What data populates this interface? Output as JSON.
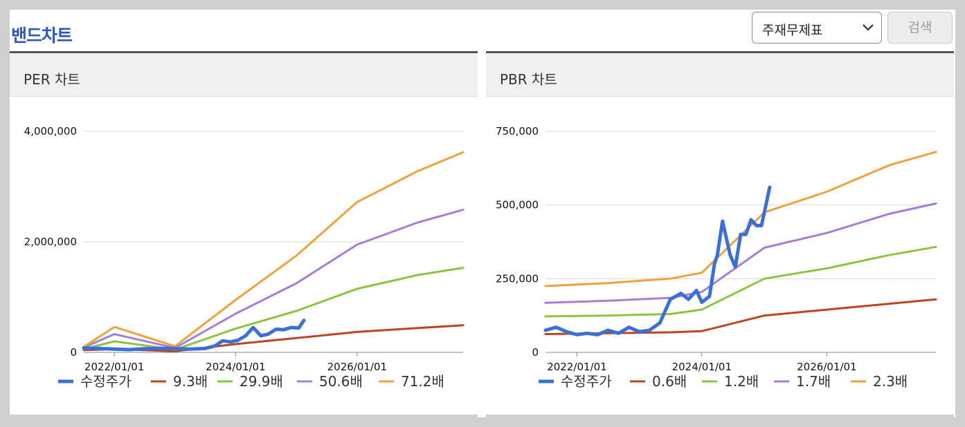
{
  "header": {
    "title": "밴드차트",
    "select_value": "주재무제표",
    "search_label": "검색"
  },
  "chart_data": [
    {
      "type": "line",
      "title": "PER 차트",
      "ylim": [
        0,
        4000000
      ],
      "yticks": [
        0,
        2000000,
        4000000
      ],
      "ytick_labels": [
        "0",
        "2,000,000",
        "4,000,000"
      ],
      "xticks": [
        "2022-01-01",
        "2024-01-01",
        "2026-01-01"
      ],
      "xtick_labels": [
        "2022/01/01",
        "2024/01/01",
        "2026/01/01"
      ],
      "xlim": [
        "2021-07-01",
        "2027-10-01"
      ],
      "grid": true,
      "legend_position": "bottom",
      "series": [
        {
          "name": "수정주가",
          "color": "#3a6fd8",
          "thick": true,
          "x": [
            "2021-07-01",
            "2021-10-01",
            "2022-01-01",
            "2022-04-01",
            "2022-07-01",
            "2022-10-01",
            "2023-01-01",
            "2023-04-01",
            "2023-07-01",
            "2023-09-01",
            "2023-10-15",
            "2023-12-01",
            "2024-01-15",
            "2024-03-01",
            "2024-04-15",
            "2024-06-01",
            "2024-07-15",
            "2024-09-01",
            "2024-10-15",
            "2024-12-01",
            "2025-01-15",
            "2025-02-15"
          ],
          "values": [
            80000,
            70000,
            60000,
            50000,
            65000,
            70000,
            70000,
            60000,
            70000,
            120000,
            210000,
            190000,
            220000,
            300000,
            450000,
            300000,
            330000,
            420000,
            410000,
            450000,
            440000,
            580000
          ]
        },
        {
          "name": "9.3배",
          "color": "#c0431f",
          "x": [
            "2021-07-01",
            "2022-01-01",
            "2023-01-01",
            "2024-01-01",
            "2025-01-01",
            "2026-01-01",
            "2027-01-01",
            "2027-10-01"
          ],
          "values": [
            40000,
            60000,
            20000,
            150000,
            260000,
            370000,
            440000,
            490000
          ]
        },
        {
          "name": "29.9배",
          "color": "#8bc43f",
          "x": [
            "2021-07-01",
            "2022-01-01",
            "2023-01-01",
            "2024-01-01",
            "2025-01-01",
            "2026-01-01",
            "2027-01-01",
            "2027-10-01"
          ],
          "values": [
            60000,
            200000,
            50000,
            430000,
            750000,
            1150000,
            1400000,
            1530000
          ]
        },
        {
          "name": "50.6배",
          "color": "#a47ed6",
          "x": [
            "2021-07-01",
            "2022-01-01",
            "2023-01-01",
            "2024-01-01",
            "2025-01-01",
            "2026-01-01",
            "2027-01-01",
            "2027-10-01"
          ],
          "values": [
            90000,
            330000,
            80000,
            700000,
            1250000,
            1950000,
            2350000,
            2580000
          ]
        },
        {
          "name": "71.2배",
          "color": "#f0a23a",
          "x": [
            "2021-07-01",
            "2022-01-01",
            "2023-01-01",
            "2024-01-01",
            "2025-01-01",
            "2026-01-01",
            "2027-01-01",
            "2027-10-01"
          ],
          "values": [
            100000,
            460000,
            110000,
            950000,
            1750000,
            2720000,
            3280000,
            3620000
          ]
        }
      ]
    },
    {
      "type": "line",
      "title": "PBR 차트",
      "ylim": [
        0,
        750000
      ],
      "yticks": [
        0,
        250000,
        500000,
        750000
      ],
      "ytick_labels": [
        "0",
        "250,000",
        "500,000",
        "750,000"
      ],
      "xticks": [
        "2022-01-01",
        "2024-01-01",
        "2026-01-01"
      ],
      "xtick_labels": [
        "2022/01/01",
        "2024/01/01",
        "2026/01/01"
      ],
      "xlim": [
        "2021-07-01",
        "2027-10-01"
      ],
      "grid": true,
      "legend_position": "bottom",
      "series": [
        {
          "name": "수정주가",
          "color": "#3a6fd8",
          "thick": true,
          "x": [
            "2021-07-01",
            "2021-09-01",
            "2021-11-01",
            "2022-01-01",
            "2022-03-01",
            "2022-05-01",
            "2022-07-01",
            "2022-09-01",
            "2022-11-01",
            "2023-01-01",
            "2023-03-01",
            "2023-05-01",
            "2023-07-01",
            "2023-09-01",
            "2023-10-15",
            "2023-12-01",
            "2024-01-01",
            "2024-02-15",
            "2024-03-15",
            "2024-04-01",
            "2024-05-01",
            "2024-06-15",
            "2024-07-15",
            "2024-08-15",
            "2024-09-15",
            "2024-10-15",
            "2024-11-15",
            "2024-12-15",
            "2025-02-01"
          ],
          "values": [
            75000,
            85000,
            70000,
            60000,
            65000,
            60000,
            75000,
            65000,
            85000,
            70000,
            75000,
            100000,
            180000,
            200000,
            180000,
            210000,
            170000,
            190000,
            300000,
            330000,
            445000,
            330000,
            290000,
            400000,
            400000,
            450000,
            430000,
            430000,
            560000
          ]
        },
        {
          "name": "0.6배",
          "color": "#c0431f",
          "x": [
            "2021-07-01",
            "2022-07-01",
            "2023-07-01",
            "2024-01-01",
            "2025-01-01",
            "2026-01-01",
            "2027-01-01",
            "2027-10-01"
          ],
          "values": [
            62000,
            65000,
            68000,
            72000,
            125000,
            145000,
            165000,
            180000
          ]
        },
        {
          "name": "1.2배",
          "color": "#8bc43f",
          "x": [
            "2021-07-01",
            "2022-07-01",
            "2023-07-01",
            "2024-01-01",
            "2025-01-01",
            "2026-01-01",
            "2027-01-01",
            "2027-10-01"
          ],
          "values": [
            122000,
            125000,
            130000,
            145000,
            250000,
            285000,
            330000,
            358000
          ]
        },
        {
          "name": "1.7배",
          "color": "#a47ed6",
          "x": [
            "2021-07-01",
            "2022-07-01",
            "2023-07-01",
            "2024-01-01",
            "2025-01-01",
            "2026-01-01",
            "2027-01-01",
            "2027-10-01"
          ],
          "values": [
            168000,
            175000,
            185000,
            205000,
            355000,
            405000,
            470000,
            505000
          ]
        },
        {
          "name": "2.3배",
          "color": "#f0a23a",
          "x": [
            "2021-07-01",
            "2022-07-01",
            "2023-07-01",
            "2024-01-01",
            "2025-01-01",
            "2026-01-01",
            "2027-01-01",
            "2027-10-01"
          ],
          "values": [
            225000,
            235000,
            250000,
            270000,
            475000,
            545000,
            635000,
            680000
          ]
        }
      ]
    }
  ]
}
